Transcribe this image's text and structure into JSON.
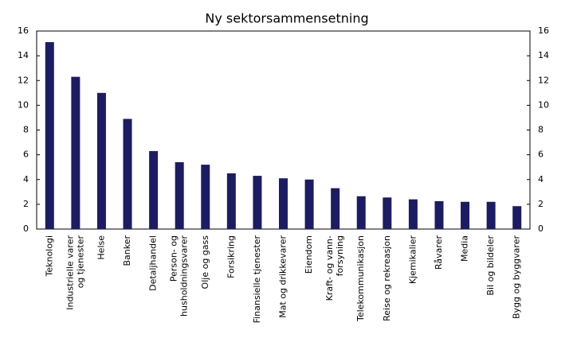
{
  "chart_data": {
    "type": "bar",
    "title": "Ny sektorsammensetning",
    "categories": [
      "Teknologi",
      "Industrielle varer\nog tjenester",
      "Helse",
      "Banker",
      "Detaljhandel",
      "Person- og\nhusholdningsvarer",
      "Olje og gass",
      "Forsikring",
      "Finansielle tjenester",
      "Mat og drikkevarer",
      "Eiendom",
      "Kraft- og vann-\nforsyning",
      "Telekommunikasjon",
      "Reise og rekreasjon",
      "Kjemikalier",
      "Råvarer",
      "Media",
      "Bil og bildeler",
      "Bygg og byggvarer"
    ],
    "values": [
      15.1,
      12.3,
      11.0,
      8.9,
      6.3,
      5.4,
      5.2,
      4.5,
      4.3,
      4.1,
      4.0,
      3.3,
      2.65,
      2.55,
      2.4,
      2.25,
      2.2,
      2.2,
      1.85
    ],
    "color": "#1c1c64",
    "ylim": [
      0,
      16
    ],
    "yticks": [
      0,
      2,
      4,
      6,
      8,
      10,
      12,
      14,
      16
    ],
    "y2lim": [
      0,
      16
    ],
    "y2ticks": [
      0,
      2,
      4,
      6,
      8,
      10,
      12,
      14,
      16
    ],
    "grid": false
  }
}
